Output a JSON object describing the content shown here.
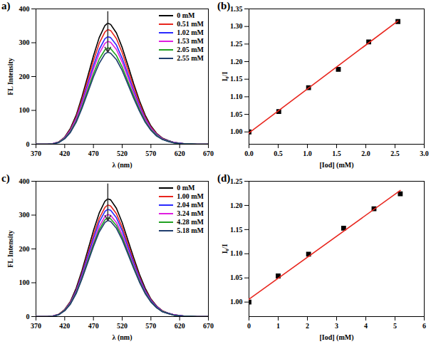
{
  "chart_data": [
    {
      "type": "line",
      "title": "a)",
      "xlabel": "λ (nm)",
      "ylabel": "FL Intensity",
      "x": [
        370,
        380,
        390,
        400,
        410,
        420,
        430,
        440,
        450,
        460,
        470,
        480,
        490,
        495,
        500,
        510,
        520,
        530,
        540,
        550,
        560,
        570,
        580,
        590,
        600,
        610,
        620,
        630,
        640,
        650,
        660,
        670
      ],
      "xlim": [
        370,
        670
      ],
      "xticks": [
        370,
        420,
        470,
        520,
        570,
        620,
        670
      ],
      "ylim": [
        0,
        400
      ],
      "yticks": [
        0,
        100,
        200,
        300,
        400
      ],
      "legend": "top-right",
      "series": [
        {
          "name": "0 mM",
          "color": "#000000",
          "values": [
            0,
            0,
            0,
            2,
            7,
            21,
            47,
            86,
            140,
            200,
            261,
            315,
            351,
            358,
            354,
            329,
            286,
            233,
            179,
            129,
            86,
            54,
            32,
            18,
            11,
            5,
            3,
            1,
            1,
            0,
            0,
            0
          ]
        },
        {
          "name": "0.51 mM",
          "color": "#e8261e",
          "values": [
            0,
            0,
            0,
            2,
            7,
            20,
            44,
            81,
            132,
            190,
            247,
            298,
            332,
            339,
            336,
            312,
            271,
            220,
            170,
            122,
            81,
            51,
            31,
            17,
            10,
            5,
            3,
            1,
            1,
            0,
            0,
            0
          ]
        },
        {
          "name": "1.02 mM",
          "color": "#2a2aff",
          "values": [
            0,
            0,
            0,
            2,
            6,
            19,
            41,
            76,
            124,
            178,
            232,
            280,
            312,
            318,
            315,
            293,
            254,
            207,
            159,
            114,
            76,
            48,
            29,
            16,
            10,
            5,
            3,
            1,
            1,
            0,
            0,
            0
          ]
        },
        {
          "name": "1.53 mM",
          "color": "#e01ee0",
          "values": [
            0,
            0,
            0,
            2,
            6,
            18,
            40,
            73,
            119,
            170,
            222,
            268,
            298,
            304,
            301,
            280,
            243,
            198,
            152,
            109,
            73,
            46,
            27,
            15,
            9,
            5,
            2,
            1,
            1,
            0,
            0,
            0
          ]
        },
        {
          "name": "2.05 mM",
          "color": "#21a121",
          "values": [
            0,
            0,
            0,
            1,
            6,
            17,
            37,
            68,
            111,
            160,
            208,
            251,
            279,
            285,
            282,
            262,
            228,
            185,
            143,
            103,
            68,
            43,
            26,
            14,
            9,
            4,
            2,
            1,
            1,
            0,
            0,
            0
          ]
        },
        {
          "name": "2.55 mM",
          "color": "#1f3d6e",
          "values": [
            0,
            0,
            0,
            1,
            5,
            16,
            35,
            65,
            106,
            152,
            199,
            239,
            267,
            272,
            269,
            250,
            218,
            177,
            136,
            98,
            65,
            41,
            24,
            14,
            8,
            4,
            2,
            1,
            1,
            0,
            0,
            0
          ]
        }
      ]
    },
    {
      "type": "scatter",
      "title": "(b)",
      "xlabel": "[Iod] (mM)",
      "ylabel": "I₀/I",
      "x": [
        0,
        0.51,
        1.02,
        1.53,
        2.05,
        2.55
      ],
      "xlim": [
        0,
        3.0
      ],
      "xticks": [
        {
          "value": 0,
          "label": "0.0"
        },
        {
          "value": 0.5,
          "label": "0.5"
        },
        {
          "value": 1,
          "label": "1.0"
        },
        {
          "value": 1.5,
          "label": "1.5"
        },
        {
          "value": 2,
          "label": "2.0"
        },
        {
          "value": 2.5,
          "label": "2.5"
        },
        {
          "value": 3,
          "label": "3.0"
        }
      ],
      "ylim": [
        0.965,
        1.35
      ],
      "yticks": [
        {
          "value": 1,
          "label": "1.00"
        },
        {
          "value": 1.05,
          "label": "1.05"
        },
        {
          "value": 1.1,
          "label": "1.10"
        },
        {
          "value": 1.15,
          "label": "1.15"
        },
        {
          "value": 1.2,
          "label": "1.20"
        },
        {
          "value": 1.25,
          "label": "1.25"
        },
        {
          "value": 1.3,
          "label": "1.30"
        },
        {
          "value": 1.35,
          "label": "1.35"
        }
      ],
      "series": [
        {
          "type": "scatter",
          "color": "#000000",
          "marker": "square",
          "values": [
            1.0,
            1.058,
            1.126,
            1.178,
            1.256,
            1.314
          ]
        },
        {
          "type": "line",
          "color": "#e8261e",
          "x": [
            0,
            2.55
          ],
          "values": [
            0.997,
            1.316
          ]
        }
      ]
    },
    {
      "type": "line",
      "title": "c)",
      "xlabel": "λ (nm)",
      "ylabel": "FL Intensity",
      "x": [
        370,
        380,
        390,
        400,
        410,
        420,
        430,
        440,
        450,
        460,
        470,
        480,
        490,
        495,
        500,
        510,
        520,
        530,
        540,
        550,
        560,
        570,
        580,
        590,
        600,
        610,
        620,
        630,
        640,
        650,
        660,
        670
      ],
      "xlim": [
        370,
        670
      ],
      "xticks": [
        370,
        420,
        470,
        520,
        570,
        620,
        670
      ],
      "ylim": [
        0,
        400
      ],
      "yticks": [
        0,
        100,
        200,
        300,
        400
      ],
      "legend": "top-right",
      "series": [
        {
          "name": "0 mM",
          "color": "#000000",
          "values": [
            0,
            0,
            0,
            2,
            7,
            21,
            45,
            84,
            136,
            195,
            254,
            306,
            341,
            348,
            345,
            320,
            278,
            226,
            174,
            125,
            84,
            52,
            31,
            17,
            10,
            5,
            3,
            1,
            1,
            0,
            0,
            0
          ]
        },
        {
          "name": "1.00 mM",
          "color": "#e8261e",
          "values": [
            0,
            0,
            0,
            2,
            7,
            20,
            43,
            79,
            129,
            185,
            241,
            290,
            323,
            330,
            327,
            304,
            264,
            215,
            165,
            119,
            79,
            50,
            30,
            17,
            10,
            5,
            3,
            1,
            1,
            0,
            0,
            0
          ]
        },
        {
          "name": "2.04 mM",
          "color": "#2a2aff",
          "values": [
            0,
            0,
            0,
            2,
            6,
            19,
            41,
            76,
            124,
            178,
            231,
            279,
            311,
            317,
            314,
            292,
            254,
            206,
            159,
            114,
            76,
            48,
            29,
            16,
            10,
            5,
            3,
            1,
            1,
            0,
            0,
            0
          ]
        },
        {
          "name": "3.24 mM",
          "color": "#e01ee0",
          "values": [
            0,
            0,
            0,
            2,
            6,
            18,
            39,
            72,
            118,
            169,
            220,
            266,
            296,
            302,
            299,
            278,
            242,
            196,
            151,
            109,
            72,
            45,
            27,
            15,
            9,
            5,
            2,
            1,
            1,
            0,
            0,
            0
          ]
        },
        {
          "name": "4.28 mM",
          "color": "#21a121",
          "values": [
            0,
            0,
            0,
            1,
            6,
            18,
            38,
            70,
            114,
            164,
            213,
            257,
            286,
            292,
            289,
            269,
            234,
            190,
            146,
            105,
            70,
            44,
            26,
            15,
            9,
            4,
            2,
            1,
            1,
            0,
            0,
            0
          ]
        },
        {
          "name": "5.18 mM",
          "color": "#1f3d6e",
          "values": [
            0,
            0,
            0,
            1,
            6,
            17,
            37,
            68,
            111,
            159,
            207,
            250,
            278,
            284,
            281,
            261,
            227,
            185,
            142,
            102,
            68,
            43,
            26,
            14,
            9,
            4,
            2,
            1,
            1,
            0,
            0,
            0
          ]
        }
      ]
    },
    {
      "type": "scatter",
      "title": "(d)",
      "xlabel": "[Iod] (mM)",
      "ylabel": "I₀/I",
      "x": [
        0,
        1.0,
        2.04,
        3.24,
        4.28,
        5.18
      ],
      "xlim": [
        0,
        6
      ],
      "xticks": [
        0,
        1,
        2,
        3,
        4,
        5,
        6
      ],
      "ylim": [
        0.97,
        1.25
      ],
      "yticks": [
        {
          "value": 1,
          "label": "1.00"
        },
        {
          "value": 1.05,
          "label": "1.05"
        },
        {
          "value": 1.1,
          "label": "1.10"
        },
        {
          "value": 1.15,
          "label": "1.15"
        },
        {
          "value": 1.2,
          "label": "1.20"
        },
        {
          "value": 1.25,
          "label": "1.25"
        }
      ],
      "series": [
        {
          "type": "scatter",
          "color": "#000000",
          "marker": "square",
          "values": [
            1.0,
            1.054,
            1.099,
            1.153,
            1.193,
            1.224
          ]
        },
        {
          "type": "line",
          "color": "#e8261e",
          "x": [
            0,
            5.18
          ],
          "values": [
            1.006,
            1.231
          ]
        }
      ]
    }
  ]
}
